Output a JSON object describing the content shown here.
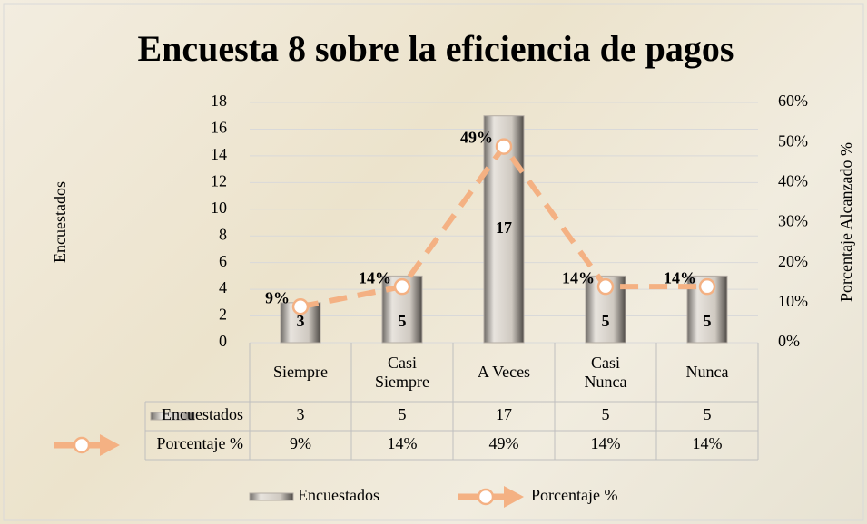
{
  "chart_data": {
    "type": "bar-line",
    "title": "Encuesta 8 sobre la eficiencia de pagos",
    "y_label": "Encuestados",
    "y2_label": "Porcentaje Alcanzado %",
    "categories": [
      "Siempre",
      "Casi Siempre",
      "A Veces",
      "Casi Nunca",
      "Nunca"
    ],
    "series": [
      {
        "name": "Encuestados",
        "type": "bar",
        "color": "#b3aca4",
        "values": [
          3,
          5,
          17,
          5,
          5
        ]
      },
      {
        "name": "Porcentaje %",
        "type": "line",
        "axis": "y2",
        "color": "#f4b183",
        "values": [
          9,
          14,
          49,
          14,
          14
        ],
        "value_labels": [
          "9%",
          "14%",
          "49%",
          "14%",
          "14%"
        ]
      }
    ],
    "ylim": [
      0,
      18
    ],
    "yticks": [
      0,
      2,
      4,
      6,
      8,
      10,
      12,
      14,
      16,
      18
    ],
    "y2lim": [
      0,
      60
    ],
    "y2ticks": [
      {
        "value": 0,
        "label": "0%"
      },
      {
        "value": 10,
        "label": "10%"
      },
      {
        "value": 20,
        "label": "20%"
      },
      {
        "value": 30,
        "label": "30%"
      },
      {
        "value": 40,
        "label": "40%"
      },
      {
        "value": 50,
        "label": "50%"
      },
      {
        "value": 60,
        "label": "60%"
      }
    ],
    "grid": true,
    "data_table": true,
    "legend": "bottom"
  }
}
